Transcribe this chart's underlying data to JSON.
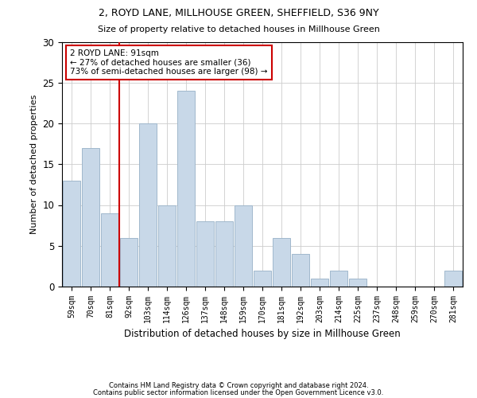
{
  "title1": "2, ROYD LANE, MILLHOUSE GREEN, SHEFFIELD, S36 9NY",
  "title2": "Size of property relative to detached houses in Millhouse Green",
  "xlabel": "Distribution of detached houses by size in Millhouse Green",
  "ylabel": "Number of detached properties",
  "categories": [
    "59sqm",
    "70sqm",
    "81sqm",
    "92sqm",
    "103sqm",
    "114sqm",
    "126sqm",
    "137sqm",
    "148sqm",
    "159sqm",
    "170sqm",
    "181sqm",
    "192sqm",
    "203sqm",
    "214sqm",
    "225sqm",
    "237sqm",
    "248sqm",
    "259sqm",
    "270sqm",
    "281sqm"
  ],
  "values": [
    13,
    17,
    9,
    6,
    20,
    10,
    24,
    8,
    8,
    10,
    2,
    6,
    4,
    1,
    2,
    1,
    0,
    0,
    0,
    0,
    2
  ],
  "bar_color": "#c8d8e8",
  "bar_edge_color": "#a0b8cc",
  "vline_index": 2.5,
  "vline_color": "#cc0000",
  "annotation_text": "2 ROYD LANE: 91sqm\n← 27% of detached houses are smaller (36)\n73% of semi-detached houses are larger (98) →",
  "annotation_box_color": "#ffffff",
  "annotation_box_edge_color": "#cc0000",
  "ylim": [
    0,
    30
  ],
  "yticks": [
    0,
    5,
    10,
    15,
    20,
    25,
    30
  ],
  "footer1": "Contains HM Land Registry data © Crown copyright and database right 2024.",
  "footer2": "Contains public sector information licensed under the Open Government Licence v3.0.",
  "background_color": "#ffffff",
  "grid_color": "#cccccc",
  "fig_width": 6.0,
  "fig_height": 5.0,
  "dpi": 100
}
